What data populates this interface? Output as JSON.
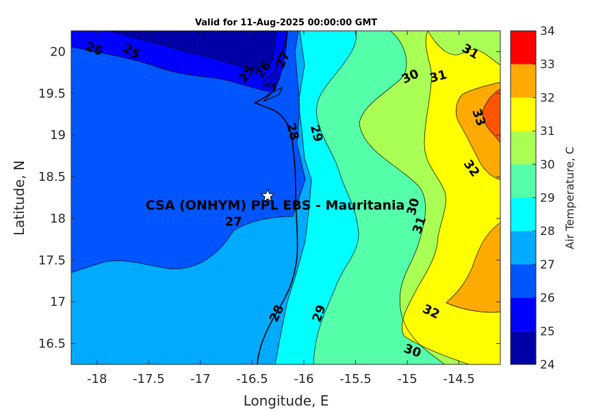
{
  "chart_data": {
    "type": "heatmap",
    "title": "Valid for 11-Aug-2025 00:00:00 GMT",
    "xlabel": "Longitude, E",
    "ylabel": "Latitude, N",
    "xlim": [
      -18.25,
      -14.1
    ],
    "ylim": [
      16.25,
      20.25
    ],
    "xticks": [
      -18,
      -17.5,
      -17,
      -16.5,
      -16,
      -15.5,
      -15,
      -14.5
    ],
    "xtick_labels": [
      "-18",
      "-17.5",
      "-17",
      "-16.5",
      "-16",
      "-15.5",
      "-15",
      "-14.5"
    ],
    "yticks": [
      16.5,
      17,
      17.5,
      18,
      18.5,
      19,
      19.5,
      20
    ],
    "ytick_labels": [
      "16.5",
      "17",
      "17.5",
      "18",
      "18.5",
      "19",
      "19.5",
      "20"
    ],
    "colorbar": {
      "label": "Air Temperature, C",
      "min": 24,
      "max": 34,
      "ticks": [
        24,
        25,
        26,
        27,
        28,
        29,
        30,
        31,
        32,
        33,
        34
      ],
      "tick_labels": [
        "24",
        "25",
        "26",
        "27",
        "28",
        "29",
        "30",
        "31",
        "32",
        "33",
        "34"
      ],
      "colors": [
        "#0000a6",
        "#0000ff",
        "#0055ff",
        "#00aaff",
        "#00ffff",
        "#55ffaa",
        "#aaff55",
        "#ffff00",
        "#ffaa00",
        "#ff5500",
        "#ff0000"
      ]
    },
    "contour_levels": [
      25,
      26,
      27,
      28,
      29,
      30,
      31,
      32,
      33
    ],
    "contour_labels": [
      {
        "text": "26",
        "lon": -18.03,
        "lat": 20.03,
        "rot": 20
      },
      {
        "text": "25",
        "lon": -17.67,
        "lat": 20.0,
        "rot": 30
      },
      {
        "text": "25",
        "lon": -16.55,
        "lat": 19.73,
        "rot": -55
      },
      {
        "text": "26",
        "lon": -16.39,
        "lat": 19.78,
        "rot": -55
      },
      {
        "text": "27",
        "lon": -16.2,
        "lat": 19.9,
        "rot": -65
      },
      {
        "text": "28",
        "lon": -16.11,
        "lat": 19.04,
        "rot": 75
      },
      {
        "text": "29",
        "lon": -15.88,
        "lat": 19.02,
        "rot": 75
      },
      {
        "text": "30",
        "lon": -14.97,
        "lat": 19.7,
        "rot": -25
      },
      {
        "text": "31",
        "lon": -14.7,
        "lat": 19.7,
        "rot": -15
      },
      {
        "text": "31",
        "lon": -14.39,
        "lat": 20.0,
        "rot": 30
      },
      {
        "text": "33",
        "lon": -14.31,
        "lat": 19.21,
        "rot": 70
      },
      {
        "text": "32",
        "lon": -14.38,
        "lat": 18.6,
        "rot": 55
      },
      {
        "text": "30",
        "lon": -14.94,
        "lat": 18.14,
        "rot": -75
      },
      {
        "text": "31",
        "lon": -14.88,
        "lat": 17.92,
        "rot": -70
      },
      {
        "text": "27",
        "lon": -16.68,
        "lat": 17.96,
        "rot": 0
      },
      {
        "text": "28",
        "lon": -16.26,
        "lat": 16.86,
        "rot": -65
      },
      {
        "text": "29",
        "lon": -15.85,
        "lat": 16.86,
        "rot": -70
      },
      {
        "text": "32",
        "lon": -14.77,
        "lat": 16.88,
        "rot": 25
      },
      {
        "text": "30",
        "lon": -14.95,
        "lat": 16.41,
        "rot": 20
      }
    ],
    "site": {
      "name": "CSA (ONHYM) PPL EBS  - Mauritania",
      "lon": -16.35,
      "lat": 18.27
    }
  }
}
